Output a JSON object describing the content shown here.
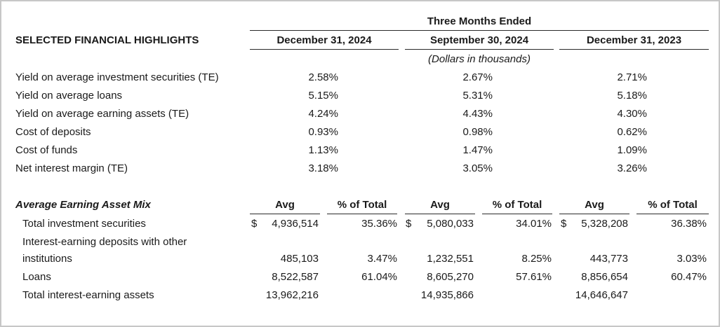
{
  "header": {
    "period_title": "Three Months Ended",
    "section_title": "SELECTED FINANCIAL HIGHLIGHTS",
    "columns": [
      "December 31, 2024",
      "September 30, 2024",
      "December 31, 2023"
    ],
    "units_note": "(Dollars in thousands)"
  },
  "highlights": [
    {
      "label": "Yield on average investment securities (TE)",
      "values": [
        "2.58%",
        "2.67%",
        "2.71%"
      ]
    },
    {
      "label": "Yield on average loans",
      "values": [
        "5.15%",
        "5.31%",
        "5.18%"
      ]
    },
    {
      "label": "Yield on average earning assets (TE)",
      "values": [
        "4.24%",
        "4.43%",
        "4.30%"
      ]
    },
    {
      "label": "Cost of deposits",
      "values": [
        "0.93%",
        "0.98%",
        "0.62%"
      ]
    },
    {
      "label": "Cost of funds",
      "values": [
        "1.13%",
        "1.47%",
        "1.09%"
      ]
    },
    {
      "label": "Net interest margin (TE)",
      "values": [
        "3.18%",
        "3.05%",
        "3.26%"
      ]
    }
  ],
  "mix": {
    "title": "Average Earning Asset Mix",
    "subheaders": [
      "Avg",
      "% of Total",
      "Avg",
      "% of Total",
      "Avg",
      "% of Total"
    ],
    "currency_symbol": "$",
    "rows": [
      {
        "label": "Total investment securities",
        "label_line2": "",
        "values": [
          "4,936,514",
          "35.36%",
          "5,080,033",
          "34.01%",
          "5,328,208",
          "36.38%"
        ]
      },
      {
        "label": "Interest-earning deposits with other",
        "label_line2": "institutions",
        "values": [
          "485,103",
          "3.47%",
          "1,232,551",
          "8.25%",
          "443,773",
          "3.03%"
        ]
      },
      {
        "label": "Loans",
        "label_line2": "",
        "values": [
          "8,522,587",
          "61.04%",
          "8,605,270",
          "57.61%",
          "8,856,654",
          "60.47%"
        ]
      },
      {
        "label": "Total interest-earning assets",
        "label_line2": "",
        "values": [
          "13,962,216",
          "",
          "14,935,866",
          "",
          "14,646,647",
          ""
        ]
      }
    ]
  }
}
